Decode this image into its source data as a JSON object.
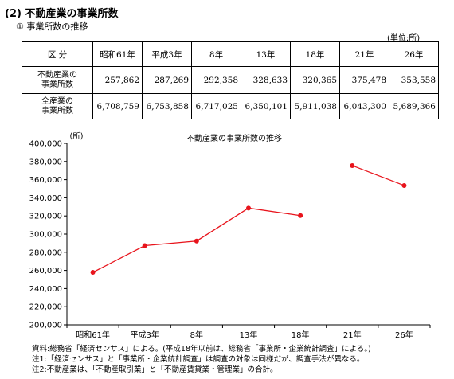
{
  "heading": "(2) 不動産業の事業所数",
  "subheading": "① 事業所数の推移",
  "unit": "(単位:所)",
  "table": {
    "corner": "区 分",
    "columns": [
      "昭和61年",
      "平成3年",
      "8年",
      "13年",
      "18年",
      "21年",
      "26年"
    ],
    "rows": [
      {
        "label_line1": "不動産業の",
        "label_line2": "事業所数",
        "values": [
          "257,862",
          "287,269",
          "292,358",
          "328,633",
          "320,365",
          "375,478",
          "353,558"
        ]
      },
      {
        "label_line1": "全産業の",
        "label_line2": "事業所数",
        "values": [
          "6,708,759",
          "6,753,858",
          "6,717,025",
          "6,350,101",
          "5,911,038",
          "6,043,300",
          "5,689,366"
        ]
      }
    ]
  },
  "chart_data": {
    "type": "line",
    "title": "不動産業の事業所数の推移",
    "ylabel": "(所)",
    "categories": [
      "昭和61年",
      "平成3年",
      "8年",
      "13年",
      "18年",
      "21年",
      "26年"
    ],
    "series": [
      {
        "segments": [
          {
            "start": 0,
            "values": [
              257862,
              287269,
              292358,
              328633,
              320365
            ]
          },
          {
            "start": 5,
            "values": [
              375478,
              353558
            ]
          }
        ]
      }
    ],
    "ylim": [
      200000,
      400000
    ],
    "ytick_step": 20000,
    "ytick_labels": [
      "200,000",
      "220,000",
      "240,000",
      "260,000",
      "280,000",
      "300,000",
      "320,000",
      "340,000",
      "360,000",
      "380,000",
      "400,000"
    ],
    "grid": false,
    "line_color": "#e8141c"
  },
  "notes": [
    "資料:総務省「経済センサス」による。(平成18年以前は、総務省「事業所・企業統計調査」による。)",
    "注1:「経済センサス」と「事業所・企業統計調査」は調査の対象は同様だが、調査手法が異なる。",
    "注2:不動産業は、「不動産取引業」と「不動産賃貸業・管理業」の合計。"
  ]
}
